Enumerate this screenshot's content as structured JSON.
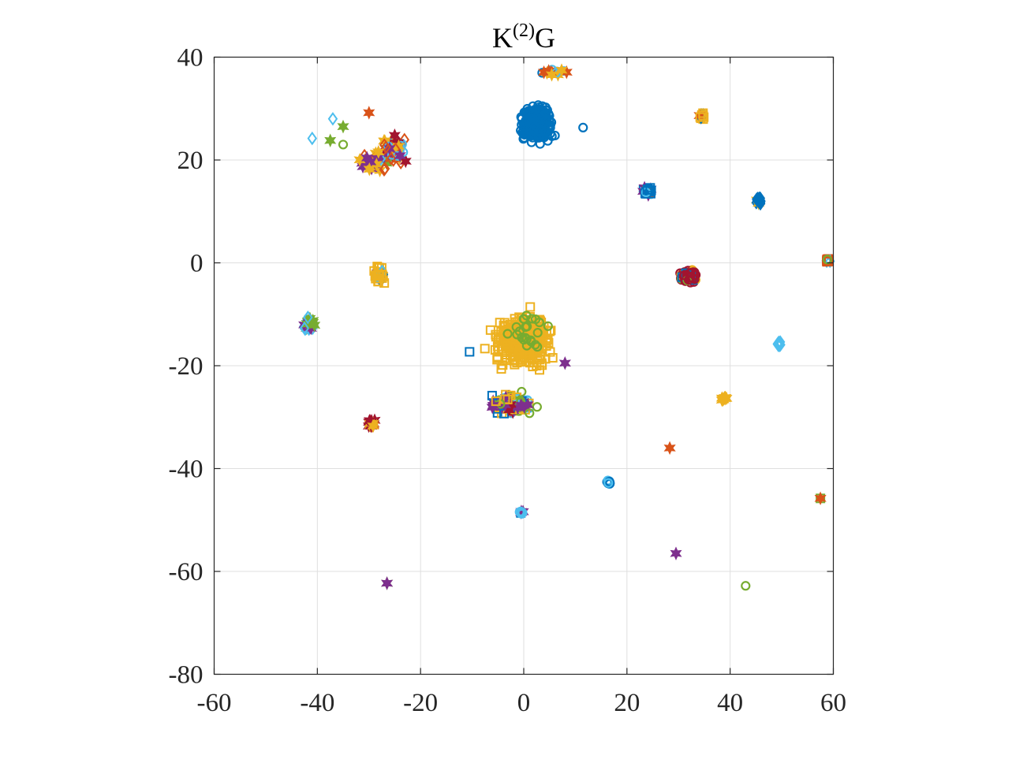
{
  "chart_data": {
    "type": "scatter",
    "title_main": "K",
    "title_sup": "(2)",
    "title_tail": "G",
    "xlabel": "",
    "ylabel": "",
    "xlim": [
      -60,
      60
    ],
    "ylim": [
      -80,
      40
    ],
    "xticks": [
      -60,
      -40,
      -20,
      0,
      20,
      40,
      60
    ],
    "yticks": [
      -80,
      -60,
      -40,
      -20,
      0,
      20,
      40
    ],
    "xtick_labels": [
      "-60",
      "-40",
      "-20",
      "0",
      "20",
      "40",
      "60"
    ],
    "ytick_labels": [
      "-80",
      "-60",
      "-40",
      "-20",
      "0",
      "20",
      "40"
    ],
    "grid": true,
    "legend": "none",
    "colors": {
      "blue": "#0072BD",
      "orange": "#D95319",
      "yellow": "#EDB120",
      "purple": "#7E2F8E",
      "green": "#77AC30",
      "cyan": "#4DBEEE",
      "red": "#A2142F"
    },
    "clusters": [
      {
        "cx": 2.5,
        "cy": 27,
        "rx": 5,
        "ry": 5.5,
        "n": 260,
        "mix": [
          [
            "blue",
            "o",
            1
          ]
        ]
      },
      {
        "cx": -25.5,
        "cy": 22,
        "rx": 3.5,
        "ry": 4.5,
        "n": 70,
        "mix": [
          [
            "cyan",
            "o",
            0.3
          ],
          [
            "orange",
            "d",
            0.25
          ],
          [
            "red",
            "*",
            0.15
          ],
          [
            "purple",
            "*",
            0.15
          ],
          [
            "yellow",
            "*",
            0.1
          ],
          [
            "green",
            "*",
            0.05
          ]
        ]
      },
      {
        "cx": -29,
        "cy": 19.5,
        "rx": 4.5,
        "ry": 3.5,
        "n": 30,
        "mix": [
          [
            "orange",
            "d",
            0.3
          ],
          [
            "purple",
            "*",
            0.3
          ],
          [
            "yellow",
            "*",
            0.2
          ],
          [
            "cyan",
            "d",
            0.2
          ]
        ]
      },
      {
        "cx": -28,
        "cy": -2.5,
        "rx": 1.6,
        "ry": 2.8,
        "n": 40,
        "mix": [
          [
            "yellow",
            "s",
            0.85
          ],
          [
            "purple",
            "*",
            0.05
          ],
          [
            "cyan",
            "d",
            0.05
          ],
          [
            "blue",
            "d",
            0.05
          ]
        ]
      },
      {
        "cx": -41.5,
        "cy": -12,
        "rx": 1.6,
        "ry": 2,
        "n": 40,
        "mix": [
          [
            "green",
            "*",
            0.5
          ],
          [
            "cyan",
            "d",
            0.3
          ],
          [
            "purple",
            "*",
            0.2
          ]
        ]
      },
      {
        "cx": -29.5,
        "cy": -31.3,
        "rx": 1.2,
        "ry": 1.2,
        "n": 25,
        "mix": [
          [
            "red",
            "*",
            0.55
          ],
          [
            "orange",
            "*",
            0.25
          ],
          [
            "yellow",
            "*",
            0.2
          ]
        ]
      },
      {
        "cx": 0,
        "cy": -15,
        "rx": 9,
        "ry": 8,
        "n": 360,
        "mix": [
          [
            "yellow",
            "s",
            1
          ]
        ]
      },
      {
        "cx": 0.5,
        "cy": -14,
        "rx": 5,
        "ry": 7,
        "n": 24,
        "mix": [
          [
            "green",
            "o",
            1
          ]
        ]
      },
      {
        "cx": -2.5,
        "cy": -27.5,
        "rx": 6.5,
        "ry": 3.5,
        "n": 90,
        "mix": [
          [
            "yellow",
            "s",
            0.25
          ],
          [
            "purple",
            "*",
            0.25
          ],
          [
            "green",
            "o",
            0.2
          ],
          [
            "blue",
            "s",
            0.1
          ],
          [
            "cyan",
            "o",
            0.1
          ],
          [
            "red",
            "*",
            0.1
          ]
        ]
      },
      {
        "cx": 24,
        "cy": 14,
        "rx": 1.7,
        "ry": 1.4,
        "n": 35,
        "mix": [
          [
            "blue",
            "s",
            0.5
          ],
          [
            "orange",
            "s",
            0.2
          ],
          [
            "cyan",
            "o",
            0.15
          ],
          [
            "purple",
            "*",
            0.15
          ]
        ]
      },
      {
        "cx": 34.5,
        "cy": 28.5,
        "rx": 1,
        "ry": 1,
        "n": 15,
        "mix": [
          [
            "yellow",
            "s",
            0.4
          ],
          [
            "orange",
            "*",
            0.3
          ],
          [
            "blue",
            "d",
            0.3
          ]
        ]
      },
      {
        "cx": 45.5,
        "cy": 12,
        "rx": 1.2,
        "ry": 1.2,
        "n": 20,
        "mix": [
          [
            "blue",
            "d",
            0.8
          ],
          [
            "yellow",
            "*",
            0.1
          ],
          [
            "orange",
            "*",
            0.1
          ]
        ]
      },
      {
        "cx": 32,
        "cy": -2.5,
        "rx": 3,
        "ry": 2.2,
        "n": 90,
        "mix": [
          [
            "red",
            "o",
            0.85
          ],
          [
            "yellow",
            "o",
            0.05
          ],
          [
            "blue",
            "s",
            0.05
          ],
          [
            "green",
            "o",
            0.05
          ]
        ]
      },
      {
        "cx": 59,
        "cy": 0.5,
        "rx": 0.8,
        "ry": 0.8,
        "n": 14,
        "mix": [
          [
            "orange",
            "s",
            0.7
          ],
          [
            "green",
            "o",
            0.15
          ],
          [
            "cyan",
            "d",
            0.15
          ]
        ]
      },
      {
        "cx": 49.5,
        "cy": -15.8,
        "rx": 0.8,
        "ry": 0.8,
        "n": 14,
        "mix": [
          [
            "cyan",
            "d",
            1
          ]
        ]
      },
      {
        "cx": 39,
        "cy": -26.5,
        "rx": 0.8,
        "ry": 0.7,
        "n": 12,
        "mix": [
          [
            "yellow",
            "*",
            1
          ]
        ]
      },
      {
        "cx": 16.5,
        "cy": -42.8,
        "rx": 0.6,
        "ry": 0.8,
        "n": 10,
        "mix": [
          [
            "blue",
            "o",
            0.5
          ],
          [
            "purple",
            "o",
            0.2
          ],
          [
            "cyan",
            "o",
            0.3
          ]
        ]
      },
      {
        "cx": -0.5,
        "cy": -48.5,
        "rx": 0.8,
        "ry": 0.6,
        "n": 10,
        "mix": [
          [
            "cyan",
            "o",
            0.6
          ],
          [
            "blue",
            "s",
            0.2
          ],
          [
            "purple",
            "*",
            0.2
          ]
        ]
      },
      {
        "cx": 5.5,
        "cy": 37,
        "rx": 4,
        "ry": 1.2,
        "n": 16,
        "mix": [
          [
            "cyan",
            "o",
            0.4
          ],
          [
            "yellow",
            "*",
            0.2
          ],
          [
            "orange",
            "*",
            0.2
          ],
          [
            "blue",
            "o",
            0.2
          ]
        ]
      }
    ],
    "singles": [
      {
        "x": 28.3,
        "y": -36,
        "color": "orange",
        "marker": "*"
      },
      {
        "x": 29.5,
        "y": -56.5,
        "color": "purple",
        "marker": "*"
      },
      {
        "x": 43,
        "y": -62.8,
        "color": "green",
        "marker": "o"
      },
      {
        "x": 57.5,
        "y": -45.8,
        "color": "green",
        "marker": "s"
      },
      {
        "x": 57.5,
        "y": -45.8,
        "color": "orange",
        "marker": "*"
      },
      {
        "x": -26.5,
        "y": -62.3,
        "color": "green",
        "marker": "*"
      },
      {
        "x": -26.5,
        "y": -62.3,
        "color": "purple",
        "marker": "*"
      },
      {
        "x": -10.5,
        "y": -17.3,
        "color": "blue",
        "marker": "s"
      },
      {
        "x": -41,
        "y": 24.2,
        "color": "cyan",
        "marker": "d"
      },
      {
        "x": -37,
        "y": 28,
        "color": "cyan",
        "marker": "d"
      },
      {
        "x": -35,
        "y": 26.5,
        "color": "green",
        "marker": "*"
      },
      {
        "x": -37.5,
        "y": 23.8,
        "color": "green",
        "marker": "*"
      },
      {
        "x": -35,
        "y": 23,
        "color": "green",
        "marker": "o"
      },
      {
        "x": -30,
        "y": 29.2,
        "color": "orange",
        "marker": "*"
      },
      {
        "x": 11.5,
        "y": 26.3,
        "color": "blue",
        "marker": "o"
      },
      {
        "x": 8,
        "y": -19.5,
        "color": "purple",
        "marker": "*"
      }
    ]
  }
}
